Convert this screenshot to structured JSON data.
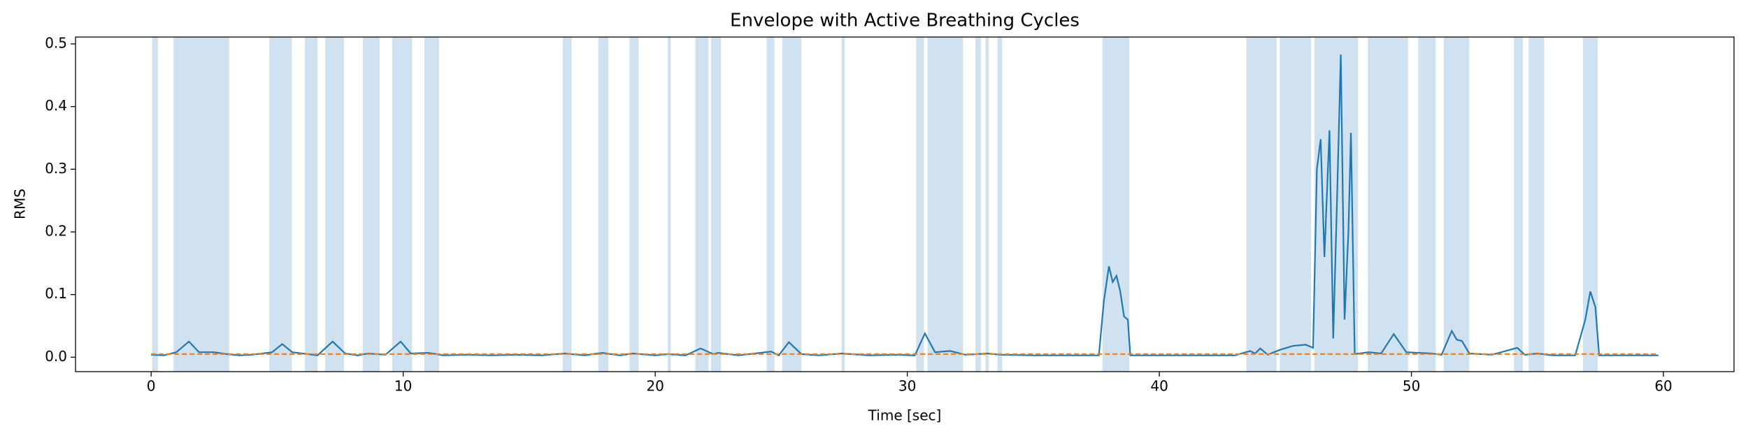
{
  "chart_data": {
    "type": "line",
    "title": "Envelope with Active Breathing Cycles",
    "x_label": "Time [sec]",
    "y_label": "RMS",
    "xlim": [
      -3.0,
      62.8
    ],
    "ylim": [
      -0.023,
      0.511
    ],
    "xticks": [
      0,
      10,
      20,
      30,
      40,
      50,
      60
    ],
    "yticks": [
      {
        "value": 0,
        "label": "0.0"
      },
      {
        "value": 0.1,
        "label": "0.1"
      },
      {
        "value": 0.2,
        "label": "0.2"
      },
      {
        "value": 0.3,
        "label": "0.3"
      },
      {
        "value": 0.4,
        "label": "0.4"
      },
      {
        "value": 0.5,
        "label": "0.5"
      }
    ],
    "span_color": "#d0e2ef",
    "spans": [
      [
        0.04,
        0.27
      ],
      [
        0.89,
        3.1
      ],
      [
        4.69,
        5.58
      ],
      [
        6.1,
        6.6
      ],
      [
        6.9,
        7.65
      ],
      [
        8.4,
        9.07
      ],
      [
        9.56,
        10.35
      ],
      [
        10.84,
        11.42
      ],
      [
        16.33,
        16.68
      ],
      [
        17.74,
        18.14
      ],
      [
        18.98,
        19.34
      ],
      [
        20.49,
        20.62
      ],
      [
        21.59,
        22.12
      ],
      [
        22.21,
        22.61
      ],
      [
        24.42,
        24.73
      ],
      [
        25.04,
        25.8
      ],
      [
        27.39,
        27.52
      ],
      [
        30.35,
        30.66
      ],
      [
        30.8,
        32.21
      ],
      [
        32.7,
        32.92
      ],
      [
        33.1,
        33.23
      ],
      [
        33.58,
        33.76
      ],
      [
        37.74,
        38.81
      ],
      [
        43.45,
        44.65
      ],
      [
        44.78,
        46.02
      ],
      [
        46.15,
        47.88
      ],
      [
        48.27,
        49.87
      ],
      [
        50.27,
        50.97
      ],
      [
        51.28,
        52.3
      ],
      [
        54.07,
        54.42
      ],
      [
        54.65,
        55.27
      ],
      [
        56.81,
        57.39
      ]
    ],
    "series": [
      {
        "color": "#1f77b4",
        "dashed": false,
        "x": [
          0,
          0.5,
          1.0,
          1.5,
          1.9,
          2.5,
          3.0,
          3.5,
          4.0,
          4.8,
          5.2,
          5.6,
          6.2,
          6.6,
          7.2,
          7.7,
          8.2,
          8.6,
          9.3,
          9.9,
          10.3,
          11.0,
          11.6,
          12.5,
          13.5,
          14.5,
          15.5,
          16.4,
          17.2,
          17.9,
          18.6,
          19.1,
          20.0,
          20.5,
          21.2,
          21.8,
          22.3,
          22.5,
          23.3,
          24.6,
          24.9,
          25.3,
          25.8,
          26.5,
          27.4,
          28.5,
          29.5,
          30.3,
          30.7,
          31.1,
          31.7,
          32.3,
          32.8,
          33.2,
          33.7,
          35,
          36.5,
          37.6,
          37.8,
          38.0,
          38.15,
          38.3,
          38.45,
          38.6,
          38.75,
          38.85,
          40,
          41.5,
          43.0,
          43.6,
          43.8,
          44.0,
          44.3,
          44.8,
          45.3,
          45.8,
          46.1,
          46.25,
          46.4,
          46.55,
          46.75,
          46.9,
          47.05,
          47.2,
          47.35,
          47.5,
          47.6,
          47.75,
          48.3,
          48.8,
          49.3,
          49.8,
          50.3,
          50.8,
          51.2,
          51.6,
          51.8,
          52.0,
          52.3,
          53.2,
          54.2,
          54.5,
          55.0,
          55.6,
          56.5,
          56.9,
          57.1,
          57.3,
          57.45,
          58.5,
          59.8
        ],
        "values": [
          0.004,
          0.003,
          0.008,
          0.025,
          0.008,
          0.008,
          0.005,
          0.003,
          0.004,
          0.008,
          0.021,
          0.008,
          0.005,
          0.003,
          0.025,
          0.006,
          0.003,
          0.006,
          0.004,
          0.025,
          0.006,
          0.007,
          0.003,
          0.004,
          0.003,
          0.004,
          0.003,
          0.006,
          0.003,
          0.007,
          0.003,
          0.006,
          0.003,
          0.005,
          0.003,
          0.014,
          0.005,
          0.007,
          0.003,
          0.009,
          0.003,
          0.024,
          0.005,
          0.003,
          0.006,
          0.003,
          0.004,
          0.003,
          0.038,
          0.008,
          0.01,
          0.004,
          0.005,
          0.006,
          0.004,
          0.003,
          0.003,
          0.003,
          0.09,
          0.145,
          0.12,
          0.13,
          0.105,
          0.065,
          0.06,
          0.003,
          0.003,
          0.003,
          0.003,
          0.01,
          0.006,
          0.014,
          0.004,
          0.012,
          0.018,
          0.02,
          0.015,
          0.3,
          0.348,
          0.16,
          0.362,
          0.03,
          0.25,
          0.483,
          0.06,
          0.2,
          0.358,
          0.005,
          0.008,
          0.006,
          0.037,
          0.008,
          0.007,
          0.006,
          0.004,
          0.042,
          0.028,
          0.026,
          0.006,
          0.004,
          0.015,
          0.004,
          0.006,
          0.003,
          0.003,
          0.06,
          0.105,
          0.08,
          0.003,
          0.003,
          0.003
        ]
      },
      {
        "color": "#ff7f0e",
        "dashed": true,
        "x": [
          0,
          59.8
        ],
        "values": [
          0.005,
          0.005
        ]
      }
    ]
  }
}
